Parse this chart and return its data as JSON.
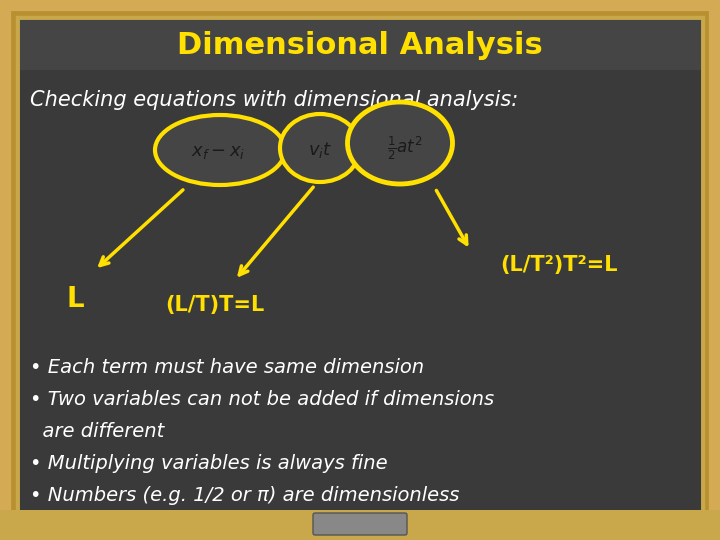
{
  "title": "Dimensional Analysis",
  "title_color": "#FFE000",
  "title_fontsize": 22,
  "bg_color": "#2d2d2d",
  "bg_color2": "#3a3a3a",
  "border_color_outer": "#c8a84b",
  "border_color_inner": "#a07830",
  "subtitle": "Checking equations with dimensional analysis:",
  "subtitle_color": "#FFFFFF",
  "subtitle_fontsize": 15,
  "yellow": "#FFE000",
  "white": "#FFFFFF",
  "bullet_points": [
    "• Each term must have same dimension",
    "• Two variables can not be added if dimensions\n  are different",
    "• Multiplying variables is always fine",
    "• Numbers (e.g. 1/2 or π) are dimensionless"
  ],
  "bullet_fontsize": 13,
  "eq_color": "#222222"
}
